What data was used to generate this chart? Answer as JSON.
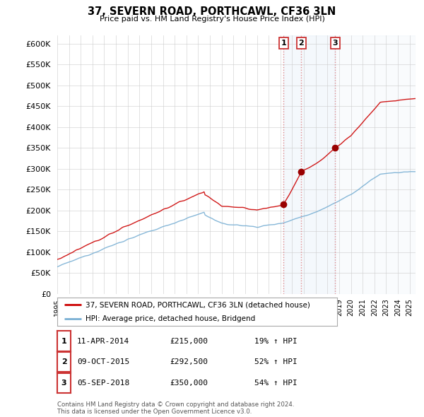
{
  "title": "37, SEVERN ROAD, PORTHCAWL, CF36 3LN",
  "subtitle": "Price paid vs. HM Land Registry's House Price Index (HPI)",
  "ylim": [
    0,
    620000
  ],
  "yticks": [
    0,
    50000,
    100000,
    150000,
    200000,
    250000,
    300000,
    350000,
    400000,
    450000,
    500000,
    550000,
    600000
  ],
  "x_start_year": 1995,
  "x_end_year": 2025,
  "sale_color": "#cc0000",
  "hpi_color": "#7ab0d4",
  "vline_color": "#e08080",
  "shade_color": "#ddeeff",
  "transactions": [
    {
      "date": 2014.27,
      "price": 215000,
      "label": "1"
    },
    {
      "date": 2015.77,
      "price": 292500,
      "label": "2"
    },
    {
      "date": 2018.67,
      "price": 350000,
      "label": "3"
    }
  ],
  "legend_sale_label": "37, SEVERN ROAD, PORTHCAWL, CF36 3LN (detached house)",
  "legend_hpi_label": "HPI: Average price, detached house, Bridgend",
  "table_rows": [
    {
      "num": "1",
      "date": "11-APR-2014",
      "price": "£215,000",
      "pct": "19% ↑ HPI"
    },
    {
      "num": "2",
      "date": "09-OCT-2015",
      "price": "£292,500",
      "pct": "52% ↑ HPI"
    },
    {
      "num": "3",
      "date": "05-SEP-2018",
      "price": "£350,000",
      "pct": "54% ↑ HPI"
    }
  ],
  "footer": "Contains HM Land Registry data © Crown copyright and database right 2024.\nThis data is licensed under the Open Government Licence v3.0.",
  "background_color": "#ffffff",
  "plot_bg_color": "#ffffff",
  "grid_color": "#cccccc"
}
